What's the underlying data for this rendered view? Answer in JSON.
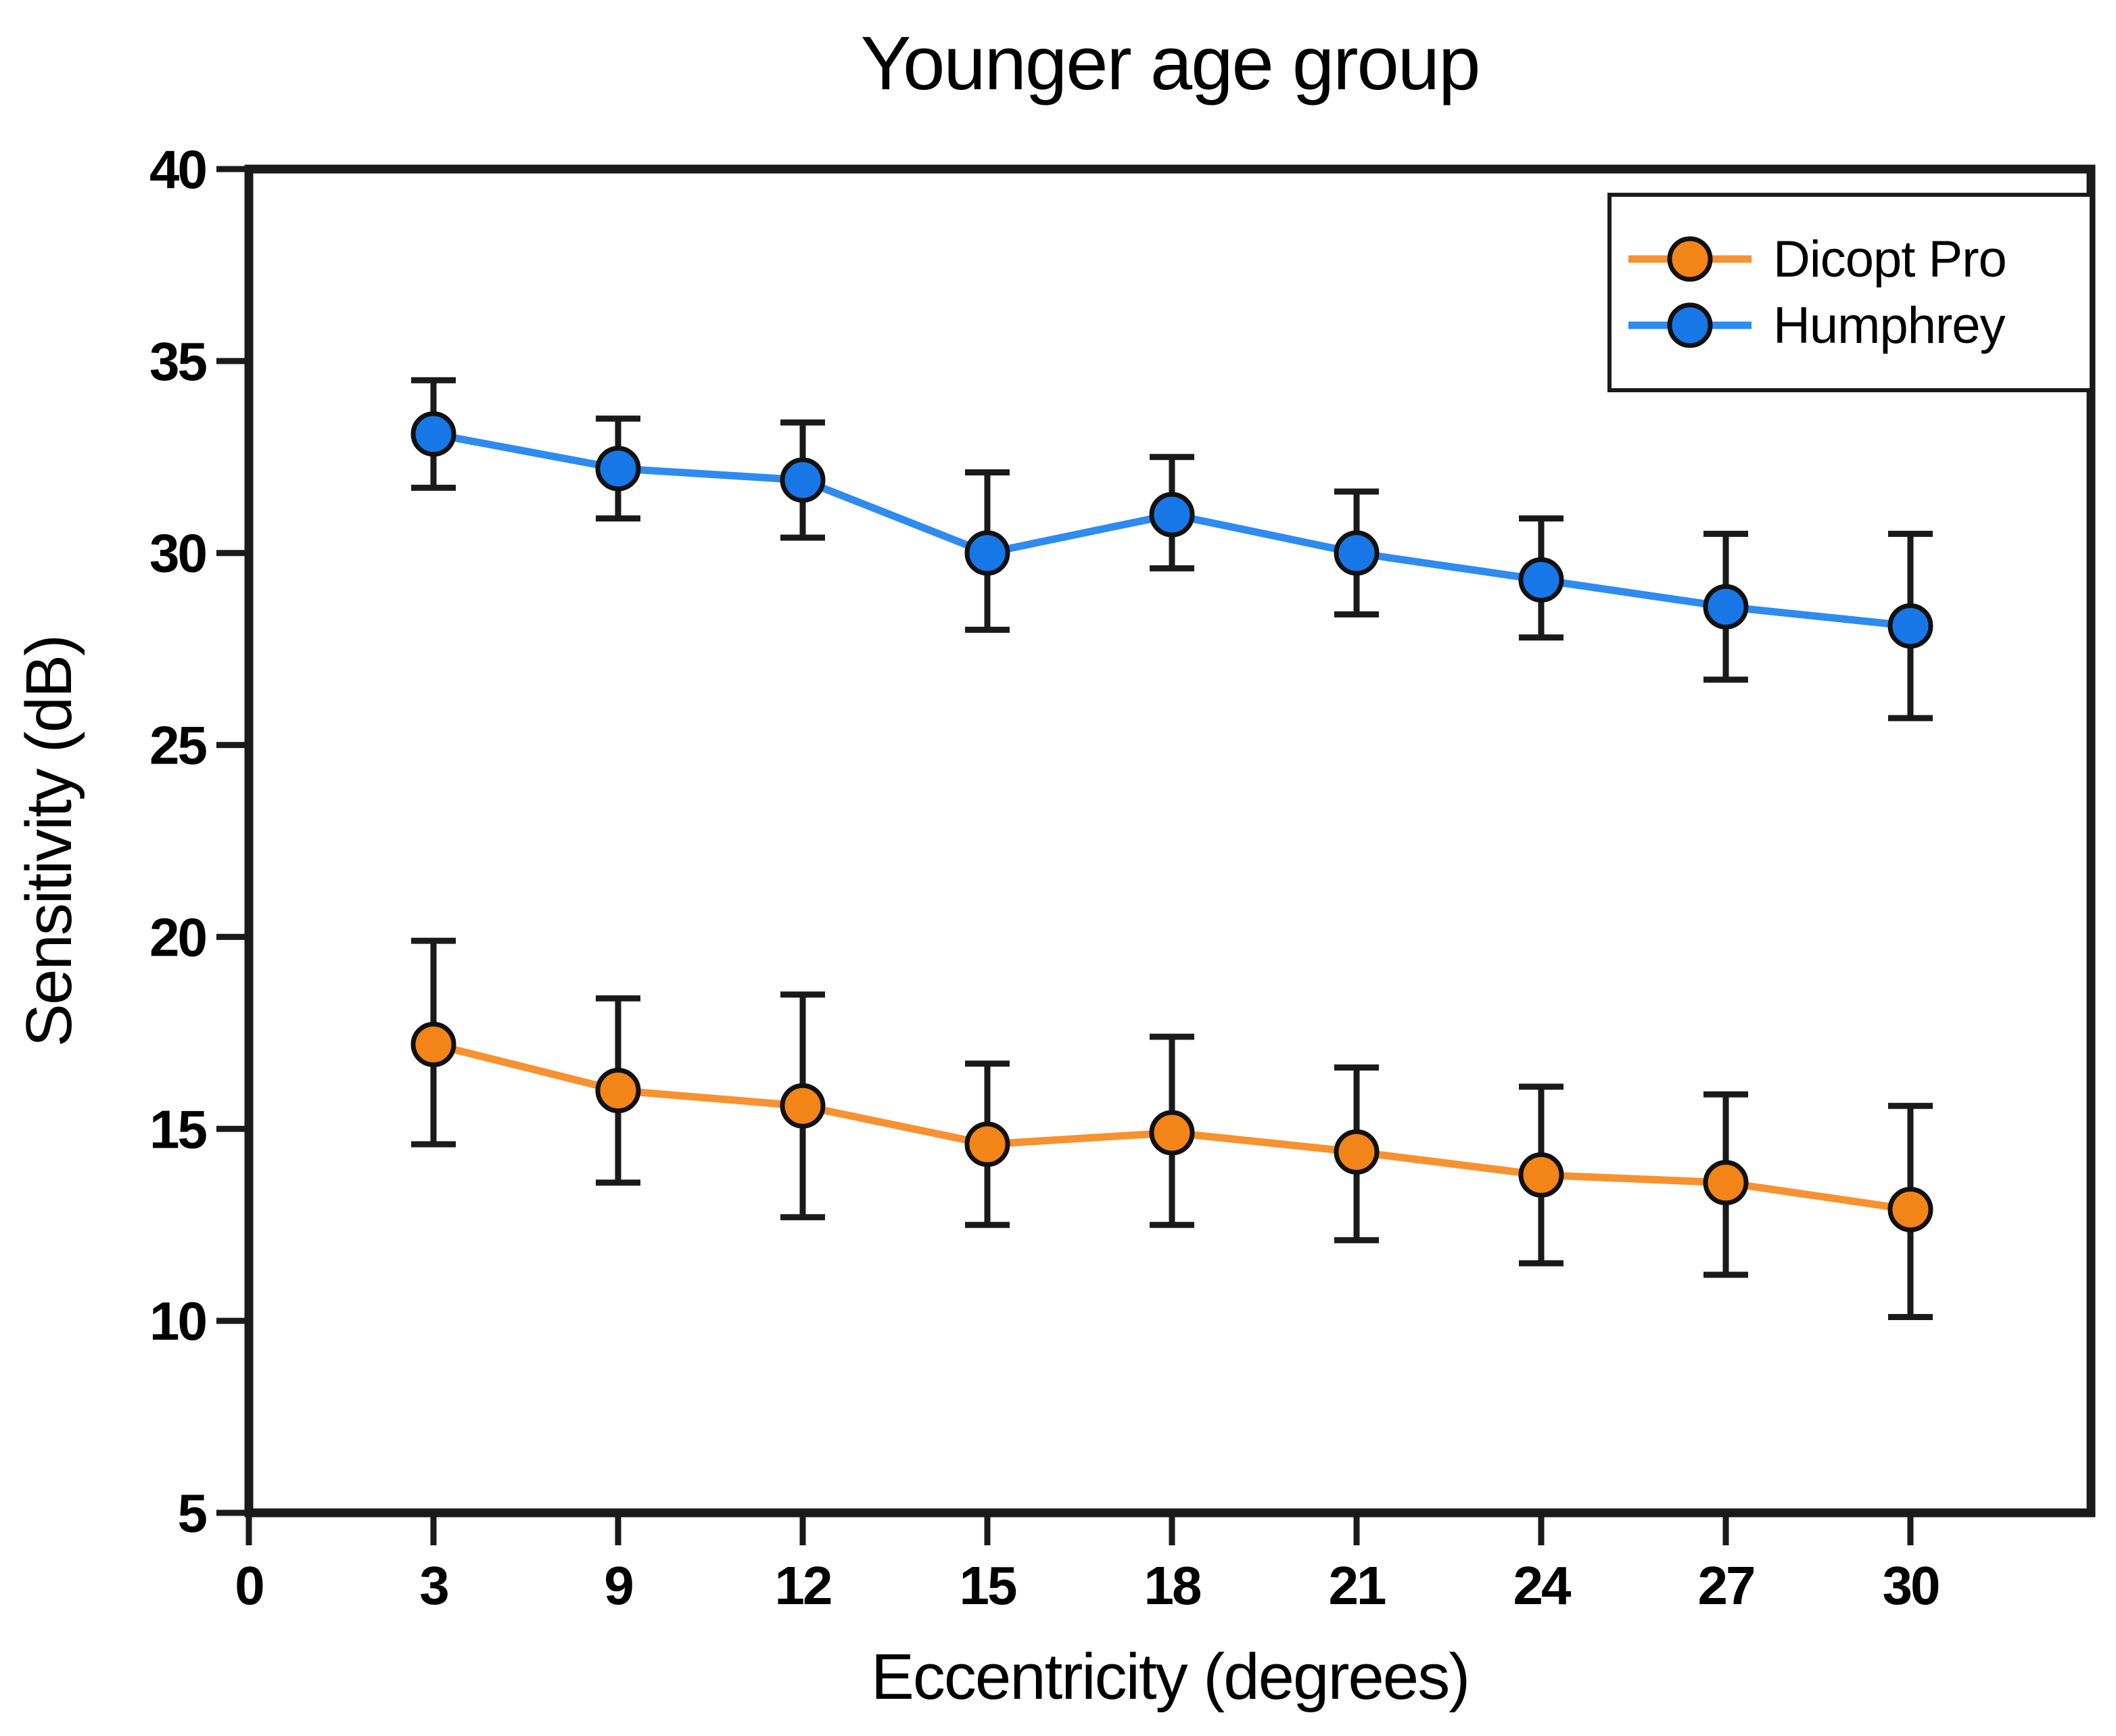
{
  "chart_data": {
    "type": "line",
    "title": "Younger age group",
    "xlabel": "Eccentricity (degrees)",
    "ylabel": "Sensitivity (dB)",
    "ylim": [
      5,
      40
    ],
    "yticks": [
      40,
      35,
      30,
      25,
      20,
      15,
      10,
      5
    ],
    "x_axis_ticks": [
      "0",
      "3",
      "9",
      "12",
      "15",
      "18",
      "21",
      "24",
      "27",
      "30"
    ],
    "categories": [
      "3",
      "9",
      "12",
      "15",
      "18",
      "21",
      "24",
      "27",
      "30"
    ],
    "grid": false,
    "legend_position": "top-right",
    "error_bar_color": "#1a1a1a",
    "axis_color": "#1a1a1a",
    "series": [
      {
        "name": "Dicopt Pro",
        "color": "#f28418",
        "line_color": "#f89130",
        "values": [
          17.2,
          16.0,
          15.6,
          14.6,
          14.9,
          14.4,
          13.8,
          13.6,
          12.9
        ],
        "error_plus": [
          2.7,
          2.4,
          2.9,
          2.1,
          2.5,
          2.2,
          2.3,
          2.3,
          2.7
        ],
        "error_minus": [
          2.6,
          2.4,
          2.9,
          2.1,
          2.4,
          2.3,
          2.3,
          2.4,
          2.8
        ]
      },
      {
        "name": "Humphrey",
        "color": "#1877e6",
        "line_color": "#2e8bf0",
        "values": [
          33.1,
          32.2,
          31.9,
          30.0,
          31.0,
          30.0,
          29.3,
          28.6,
          28.1
        ],
        "error_plus": [
          1.4,
          1.3,
          1.5,
          2.1,
          1.5,
          1.6,
          1.6,
          1.9,
          2.4
        ],
        "error_minus": [
          1.4,
          1.3,
          1.5,
          2.0,
          1.4,
          1.6,
          1.5,
          1.9,
          2.4
        ]
      }
    ]
  }
}
